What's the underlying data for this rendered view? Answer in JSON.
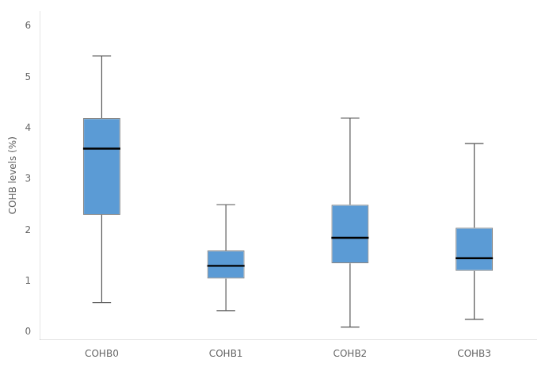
{
  "chart_data": {
    "type": "box",
    "categories": [
      "COHB0",
      "COHB1",
      "COHB2",
      "COHB3"
    ],
    "whisker_low": [
      0.58,
      0.42,
      0.1,
      0.25
    ],
    "q1": [
      2.3,
      1.05,
      1.35,
      1.2
    ],
    "median": [
      3.6,
      1.3,
      1.85,
      1.45
    ],
    "q3": [
      4.2,
      1.6,
      2.5,
      2.05
    ],
    "whisker_high": [
      5.42,
      2.5,
      4.2,
      3.7
    ],
    "color": "#5B9BD5",
    "ylabel": "COHB levels (%)",
    "ylim": [
      -0.15,
      6.3
    ],
    "yticks": [
      0,
      1,
      2,
      3,
      4,
      5,
      6
    ],
    "grid": false
  }
}
